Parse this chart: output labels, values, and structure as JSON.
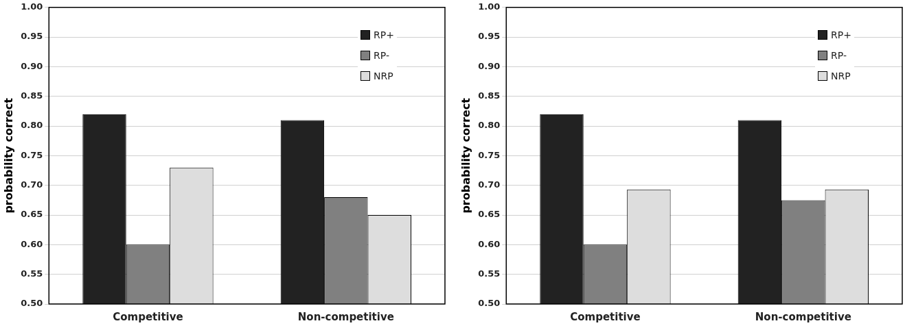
{
  "chart_data": [
    {
      "type": "bar",
      "categories": [
        "Competitive",
        "Non-competitive"
      ],
      "ylabel": "probability correct",
      "ylim": [
        0.5,
        1.0
      ],
      "yticks": [
        {
          "value": 0.5,
          "label": "0.50"
        },
        {
          "value": 0.55,
          "label": "0.55"
        },
        {
          "value": 0.6,
          "label": "0.60"
        },
        {
          "value": 0.65,
          "label": "0.65"
        },
        {
          "value": 0.7,
          "label": "0.70"
        },
        {
          "value": 0.75,
          "label": "0.75"
        },
        {
          "value": 0.8,
          "label": "0.80"
        },
        {
          "value": 0.85,
          "label": "0.85"
        },
        {
          "value": 0.9,
          "label": "0.90"
        },
        {
          "value": 0.95,
          "label": "0.95"
        },
        {
          "value": 1.0,
          "label": "1.00"
        }
      ],
      "grid": "y",
      "legend": "top right",
      "series": [
        {
          "name": "RP+",
          "color": "#222222",
          "values": [
            0.82,
            0.81
          ]
        },
        {
          "name": "RP-",
          "color": "#808080",
          "values": [
            0.6,
            0.68
          ]
        },
        {
          "name": "NRP",
          "color": "#dddddd",
          "values": [
            0.73,
            0.65
          ]
        }
      ]
    },
    {
      "type": "bar",
      "categories": [
        "Competitive",
        "Non-competitive"
      ],
      "ylabel": "probability correct",
      "ylim": [
        0.5,
        1.0
      ],
      "yticks": [
        {
          "value": 0.5,
          "label": "0.50"
        },
        {
          "value": 0.55,
          "label": "0.55"
        },
        {
          "value": 0.6,
          "label": "0.60"
        },
        {
          "value": 0.65,
          "label": "0.65"
        },
        {
          "value": 0.7,
          "label": "0.70"
        },
        {
          "value": 0.75,
          "label": "0.75"
        },
        {
          "value": 0.8,
          "label": "0.80"
        },
        {
          "value": 0.85,
          "label": "0.85"
        },
        {
          "value": 0.9,
          "label": "0.90"
        },
        {
          "value": 0.95,
          "label": "0.95"
        },
        {
          "value": 1.0,
          "label": "1.00"
        }
      ],
      "grid": "y",
      "legend": "top right",
      "series": [
        {
          "name": "RP+",
          "color": "#222222",
          "values": [
            0.82,
            0.81
          ]
        },
        {
          "name": "RP-",
          "color": "#808080",
          "values": [
            0.6,
            0.675
          ]
        },
        {
          "name": "NRP",
          "color": "#dddddd",
          "values": [
            0.693,
            0.693
          ]
        }
      ]
    }
  ]
}
